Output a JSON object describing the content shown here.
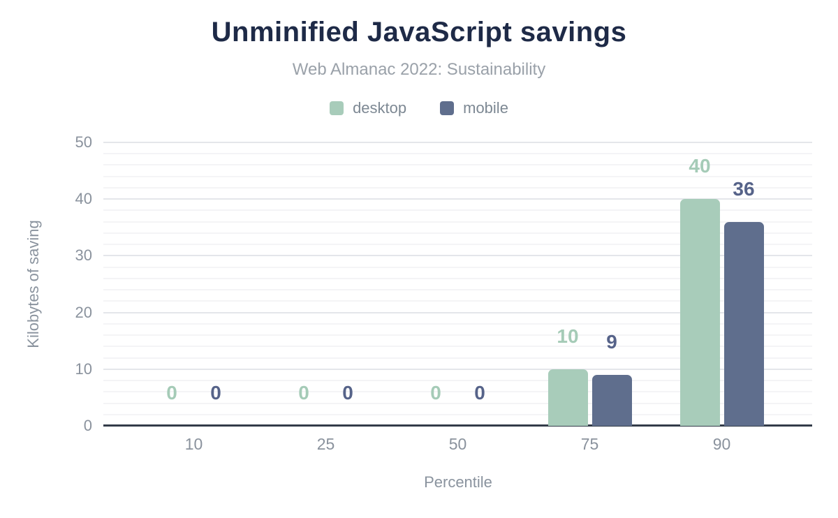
{
  "chart_data": {
    "type": "bar",
    "title": "Unminified JavaScript savings",
    "subtitle": "Web Almanac 2022: Sustainability",
    "xlabel": "Percentile",
    "ylabel": "Kilobytes of saving",
    "categories": [
      "10",
      "25",
      "50",
      "75",
      "90"
    ],
    "series": [
      {
        "name": "desktop",
        "color": "#a8ccba",
        "label_color": "#a5cbb7",
        "values": [
          0,
          0,
          0,
          10,
          40
        ]
      },
      {
        "name": "mobile",
        "color": "#5f6e8d",
        "label_color": "#566389",
        "values": [
          0,
          0,
          0,
          9,
          36
        ]
      }
    ],
    "ylim": [
      0,
      50
    ],
    "yticks": [
      0,
      10,
      20,
      30,
      40,
      50
    ],
    "y_minor_step": 2,
    "y_major_step": 10,
    "grid": true,
    "legend_position": "top"
  },
  "palette": {
    "title_color": "#1e2a47",
    "subtitle_color": "#9aa1a9",
    "axis_text_color": "#8a929d",
    "axis_line_color": "#333c49",
    "major_grid_color": "#e4e6ea",
    "minor_grid_color": "#f4f4f6",
    "background": "#ffffff"
  }
}
